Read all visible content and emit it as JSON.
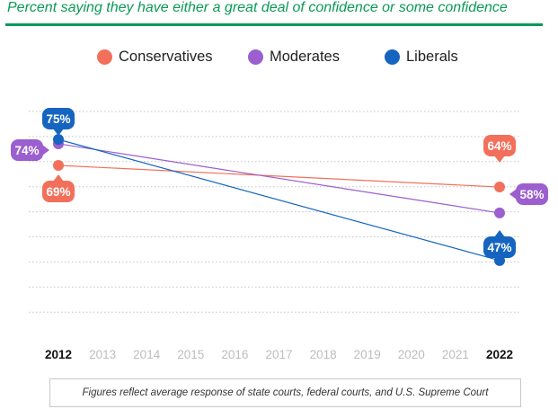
{
  "subtitle": "Percent saying they have either a great deal of confidence or some confidence",
  "colors": {
    "accent": "#0a9a57"
  },
  "legend": [
    {
      "label": "Conservatives",
      "color": "#f2705b"
    },
    {
      "label": "Moderates",
      "color": "#9b5fcf"
    },
    {
      "label": "Liberals",
      "color": "#1565c0"
    }
  ],
  "footnote": "Figures reflect average response of state courts, federal courts, and U.S. Supreme Court",
  "chart_data": {
    "type": "line",
    "x": [
      2012,
      2013,
      2014,
      2015,
      2016,
      2017,
      2018,
      2019,
      2020,
      2021,
      2022
    ],
    "highlight_x": [
      2012,
      2022
    ],
    "grid": true,
    "series": [
      {
        "name": "Conservatives",
        "color": "#f2705b",
        "x": [
          2012,
          2022
        ],
        "values": [
          69,
          64
        ],
        "labels": [
          "69%",
          "64%"
        ]
      },
      {
        "name": "Moderates",
        "color": "#9b5fcf",
        "x": [
          2012,
          2022
        ],
        "values": [
          74,
          58
        ],
        "labels": [
          "74%",
          "58%"
        ]
      },
      {
        "name": "Liberals",
        "color": "#1565c0",
        "x": [
          2012,
          2022
        ],
        "values": [
          75,
          47
        ],
        "labels": [
          "75%",
          "47%"
        ]
      }
    ]
  }
}
